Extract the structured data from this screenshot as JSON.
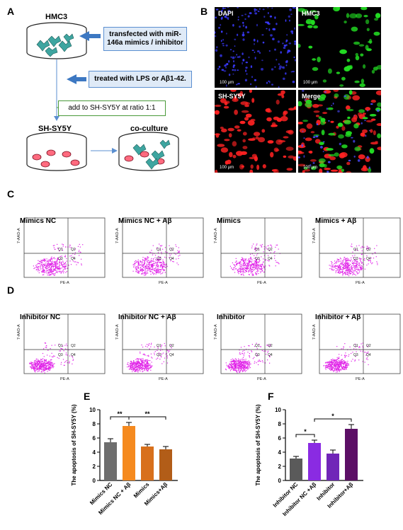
{
  "panels": {
    "a": "A",
    "b": "B",
    "c": "C",
    "d": "D",
    "e": "E",
    "f": "F"
  },
  "schematic": {
    "top_dish": "HMC3",
    "box1": "transfected with miR-146a mimics / inhibitor",
    "box2": "treated with LPS or  Aβ1-42.",
    "box3": "add to SH-SY5Y at ratio 1:1",
    "dish_left": "SH-SY5Y",
    "dish_right": "co-culture"
  },
  "micro": [
    {
      "label": "DAPI",
      "scale": "100 μm",
      "color": "#3a3aff"
    },
    {
      "label": "HMC3",
      "scale": "100 μm",
      "color": "#22dd22"
    },
    {
      "label": "SH-SY5Y",
      "scale": "100 μm",
      "color": "#ff2222"
    },
    {
      "label": "Merge",
      "scale": "100 μm",
      "color": "#22dd22"
    }
  ],
  "flow_row_c": [
    "Mimics NC",
    "Mimics NC + Aβ",
    "Mimics",
    "Mimics + Aβ"
  ],
  "flow_row_d": [
    "Inhibitor NC",
    "Inhibitor NC + Aβ",
    "Inhibitor",
    "Inhibitor + Aβ"
  ],
  "flow_axes": {
    "x": "PE-A",
    "y": "7-AAD-A",
    "q1": "Q1",
    "q2": "Q2",
    "q3": "Q3",
    "q4": "Q4"
  },
  "chart_data": [
    {
      "type": "bar",
      "ylabel": "The apoptosis of SH-SY5Y (%)",
      "categories": [
        "Mimics NC",
        "Mimics NC + Aβ",
        "Mimics",
        "Mimics+Aβ"
      ],
      "values": [
        5.4,
        7.7,
        4.8,
        4.4
      ],
      "errors": [
        0.5,
        0.5,
        0.3,
        0.4
      ],
      "colors": [
        "#6e6e6e",
        "#f58a1f",
        "#d8701c",
        "#b25d18"
      ],
      "ylim": [
        0,
        10
      ],
      "yticks": [
        0,
        2,
        4,
        6,
        8,
        10
      ],
      "significance": [
        {
          "from": 0,
          "to": 1,
          "label": "**"
        },
        {
          "from": 1,
          "to": 3,
          "label": "**"
        }
      ]
    },
    {
      "type": "bar",
      "ylabel": "The apoptosis of SH-SY5Y (%)",
      "categories": [
        "Inhibitor NC",
        "Inhibitor NC +Aβ",
        "Inhibitor",
        "Inhibitor+Aβ"
      ],
      "values": [
        3.1,
        5.3,
        3.8,
        7.3
      ],
      "errors": [
        0.3,
        0.4,
        0.5,
        0.6
      ],
      "colors": [
        "#5a5a5a",
        "#8a2be2",
        "#7026b8",
        "#5c0f66"
      ],
      "ylim": [
        0,
        10
      ],
      "yticks": [
        0,
        2,
        4,
        6,
        8,
        10
      ],
      "significance": [
        {
          "from": 0,
          "to": 1,
          "label": "*"
        },
        {
          "from": 1,
          "to": 3,
          "label": "*"
        }
      ]
    }
  ]
}
